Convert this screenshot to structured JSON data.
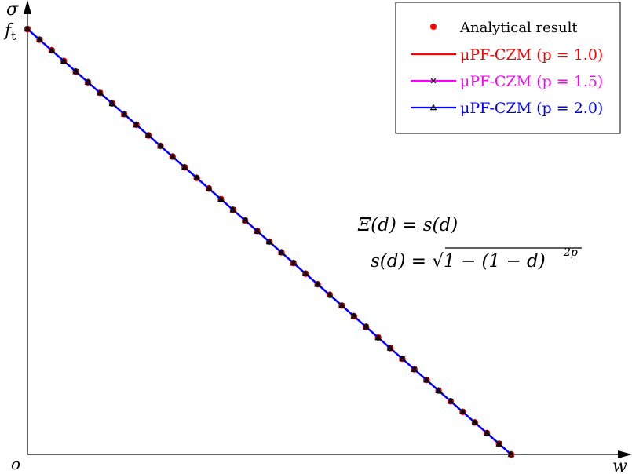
{
  "chart_data": {
    "type": "line",
    "title": "",
    "xlabel": "w",
    "ylabel": "σ",
    "x_tick_labels": {
      "origin": "o"
    },
    "y_tick_labels": {
      "f_t": "f",
      "f_t_subscript": "t"
    },
    "xlim": [
      0,
      1.25
    ],
    "ylim": [
      0,
      1.0
    ],
    "legend_placement": "top-right",
    "legend": [
      {
        "label_main": "Analytical result",
        "label_param": "",
        "color": "#ff0000",
        "marker": "dot",
        "line": false
      },
      {
        "label_main": "μPF-CZM",
        "label_param": "(p = 1.0)",
        "color": "#ff0000",
        "marker": "none",
        "line": true
      },
      {
        "label_main": "μPF-CZM",
        "label_param": "(p = 1.5)",
        "color": "#ff00ff",
        "marker": "x",
        "line": true
      },
      {
        "label_main": "μPF-CZM",
        "label_param": "(p = 2.0)",
        "color": "#0000ff",
        "marker": "triangle",
        "line": true
      }
    ],
    "annotations": [
      "Ξ(d) = s(d)",
      "s(d) = √1 − (1 − d)",
      "2p"
    ],
    "series": [
      {
        "name": "Analytical result",
        "type": "scatter",
        "color": "#ff0000",
        "x": [
          0.0,
          0.0313,
          0.0625,
          0.0938,
          0.125,
          0.1563,
          0.1875,
          0.2188,
          0.25,
          0.2813,
          0.3125,
          0.3438,
          0.375,
          0.4063,
          0.4375,
          0.4688,
          0.5,
          0.5313,
          0.5625,
          0.5938,
          0.625,
          0.6563,
          0.6875,
          0.7188,
          0.75,
          0.7813,
          0.8125,
          0.8438,
          0.875,
          0.9063,
          0.9375,
          0.9688,
          1.0,
          1.0313,
          1.0625,
          1.0938,
          1.125,
          1.1563,
          1.1875,
          1.2188,
          1.25
        ],
        "y": [
          1.0,
          0.975,
          0.95,
          0.925,
          0.9,
          0.875,
          0.85,
          0.825,
          0.8,
          0.775,
          0.75,
          0.725,
          0.7,
          0.675,
          0.65,
          0.625,
          0.6,
          0.575,
          0.55,
          0.525,
          0.5,
          0.475,
          0.45,
          0.425,
          0.4,
          0.375,
          0.35,
          0.325,
          0.3,
          0.275,
          0.25,
          0.225,
          0.2,
          0.175,
          0.15,
          0.125,
          0.1,
          0.075,
          0.05,
          0.025,
          0.0
        ]
      },
      {
        "name": "μPF-CZM (p = 1.0)",
        "type": "line",
        "color": "#ff0000",
        "x": [
          0.0,
          1.25
        ],
        "y": [
          1.0,
          0.0
        ]
      },
      {
        "name": "μPF-CZM (p = 1.5)",
        "type": "line",
        "color": "#ff00ff",
        "marker": "x",
        "x": [
          0.0,
          0.0313,
          0.0625,
          0.0938,
          0.125,
          0.1563,
          0.1875,
          0.2188,
          0.25,
          0.2813,
          0.3125,
          0.3438,
          0.375,
          0.4063,
          0.4375,
          0.4688,
          0.5,
          0.5313,
          0.5625,
          0.5938,
          0.625,
          0.6563,
          0.6875,
          0.7188,
          0.75,
          0.7813,
          0.8125,
          0.8438,
          0.875,
          0.9063,
          0.9375,
          0.9688,
          1.0,
          1.0313,
          1.0625,
          1.0938,
          1.125,
          1.1563,
          1.1875,
          1.2188,
          1.25
        ],
        "y": [
          1.0,
          0.975,
          0.95,
          0.925,
          0.9,
          0.875,
          0.85,
          0.825,
          0.8,
          0.775,
          0.75,
          0.725,
          0.7,
          0.675,
          0.65,
          0.625,
          0.6,
          0.575,
          0.55,
          0.525,
          0.5,
          0.475,
          0.45,
          0.425,
          0.4,
          0.375,
          0.35,
          0.325,
          0.3,
          0.275,
          0.25,
          0.225,
          0.2,
          0.175,
          0.15,
          0.125,
          0.1,
          0.075,
          0.05,
          0.025,
          0.0
        ]
      },
      {
        "name": "μPF-CZM (p = 2.0)",
        "type": "line",
        "color": "#0000ff",
        "marker": "triangle",
        "x": [
          0.0,
          0.0313,
          0.0625,
          0.0938,
          0.125,
          0.1563,
          0.1875,
          0.2188,
          0.25,
          0.2813,
          0.3125,
          0.3438,
          0.375,
          0.4063,
          0.4375,
          0.4688,
          0.5,
          0.5313,
          0.5625,
          0.5938,
          0.625,
          0.6563,
          0.6875,
          0.7188,
          0.75,
          0.7813,
          0.8125,
          0.8438,
          0.875,
          0.9063,
          0.9375,
          0.9688,
          1.0,
          1.0313,
          1.0625,
          1.0938,
          1.125,
          1.1563,
          1.1875,
          1.2188,
          1.25
        ],
        "y": [
          1.0,
          0.975,
          0.95,
          0.925,
          0.9,
          0.875,
          0.85,
          0.825,
          0.8,
          0.775,
          0.75,
          0.725,
          0.7,
          0.675,
          0.65,
          0.625,
          0.6,
          0.575,
          0.55,
          0.525,
          0.5,
          0.475,
          0.45,
          0.425,
          0.4,
          0.375,
          0.35,
          0.325,
          0.3,
          0.275,
          0.25,
          0.225,
          0.2,
          0.175,
          0.15,
          0.125,
          0.1,
          0.075,
          0.05,
          0.025,
          0.0
        ]
      }
    ],
    "grid": false
  }
}
